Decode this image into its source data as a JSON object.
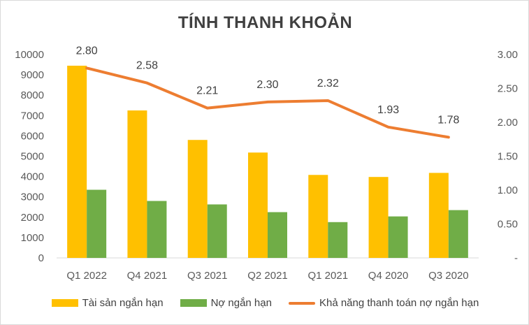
{
  "chart_data": {
    "type": "bar",
    "title": "TÍNH THANH KHOẢN",
    "categories": [
      "Q1 2022",
      "Q4 2021",
      "Q3 2021",
      "Q2 2021",
      "Q1 2021",
      "Q4 2020",
      "Q3 2020"
    ],
    "series": [
      {
        "name": "Tài sản ngắn hạn",
        "type": "bar",
        "axis": "left",
        "color": "#FFC000",
        "values": [
          9450,
          7250,
          5800,
          5180,
          4080,
          3980,
          4180
        ]
      },
      {
        "name": "Nợ ngắn hạn",
        "type": "bar",
        "axis": "left",
        "color": "#70AD47",
        "values": [
          3350,
          2800,
          2630,
          2250,
          1760,
          2040,
          2350
        ]
      },
      {
        "name": "Khả năng thanh toán nợ ngắn hạn",
        "type": "line",
        "axis": "right",
        "color": "#ED7D31",
        "values": [
          2.8,
          2.58,
          2.21,
          2.3,
          2.32,
          1.93,
          1.78
        ],
        "labels": [
          "2.80",
          "2.58",
          "2.21",
          "2.30",
          "2.32",
          "1.93",
          "1.78"
        ]
      }
    ],
    "left_axis": {
      "ylim": [
        0,
        10000
      ],
      "ticks": [
        0,
        1000,
        2000,
        3000,
        4000,
        5000,
        6000,
        7000,
        8000,
        9000,
        10000
      ],
      "tick_labels": [
        "0",
        "1000",
        "2000",
        "3000",
        "4000",
        "5000",
        "6000",
        "7000",
        "8000",
        "9000",
        "10000"
      ]
    },
    "right_axis": {
      "ylim": [
        0,
        3
      ],
      "ticks": [
        0,
        0.5,
        1,
        1.5,
        2,
        2.5,
        3
      ],
      "tick_labels": [
        "-",
        "0.50",
        "1.00",
        "1.50",
        "2.00",
        "2.50",
        "3.00"
      ]
    },
    "grid": false,
    "legend": "bottom"
  }
}
